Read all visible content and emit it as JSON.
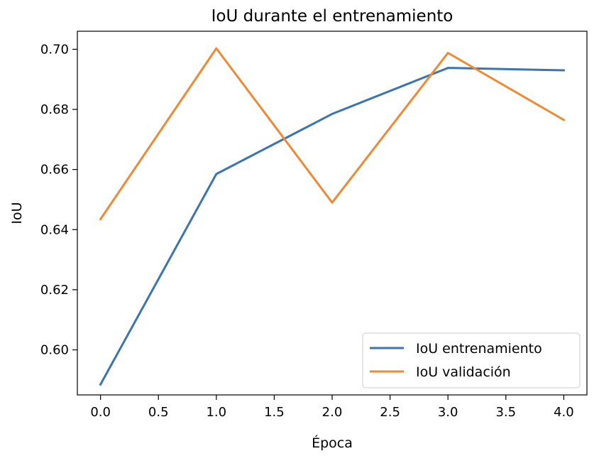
{
  "chart_data": {
    "type": "line",
    "title": "IoU durante el entrenamiento",
    "xlabel": "Época",
    "ylabel": "IoU",
    "x": [
      0,
      1,
      2,
      3,
      4
    ],
    "xlim": [
      -0.2,
      4.2
    ],
    "ylim": [
      0.585,
      0.706
    ],
    "xticks": [
      "0.0",
      "0.5",
      "1.0",
      "1.5",
      "2.0",
      "2.5",
      "3.0",
      "3.5",
      "4.0"
    ],
    "yticks": [
      "0.60",
      "0.62",
      "0.64",
      "0.66",
      "0.68",
      "0.70"
    ],
    "grid": false,
    "legend_position": "lower-right",
    "series": [
      {
        "name": "IoU entrenamiento",
        "color": "#3a75b0",
        "values": [
          0.5885,
          0.6585,
          0.6785,
          0.6938,
          0.693
        ]
      },
      {
        "name": "IoU validación",
        "color": "#ee8a35",
        "values": [
          0.6435,
          0.7003,
          0.649,
          0.6988,
          0.6765
        ]
      }
    ]
  }
}
